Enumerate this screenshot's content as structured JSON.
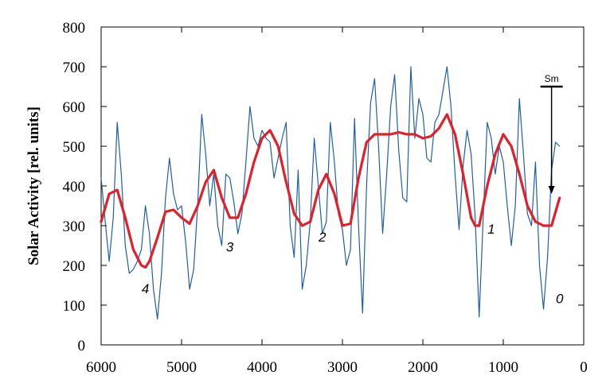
{
  "chart_data": {
    "type": "line",
    "title": "",
    "xlabel": "",
    "ylabel": "Solar Activity [rel. units]",
    "xlim": [
      6000,
      0
    ],
    "ylim": [
      0,
      800
    ],
    "x_ticks": [
      6000,
      5000,
      4000,
      3000,
      2000,
      1000,
      0
    ],
    "y_ticks": [
      0,
      100,
      200,
      300,
      400,
      500,
      600,
      700,
      800
    ],
    "grid": false,
    "legend": "none",
    "series": [
      {
        "color": "#1f5fa8",
        "x": [
          6000,
          5950,
          5900,
          5850,
          5800,
          5750,
          5700,
          5650,
          5600,
          5550,
          5500,
          5450,
          5400,
          5350,
          5300,
          5250,
          5200,
          5150,
          5100,
          5050,
          5000,
          4950,
          4900,
          4850,
          4800,
          4750,
          4700,
          4650,
          4600,
          4550,
          4500,
          4450,
          4400,
          4350,
          4300,
          4250,
          4200,
          4150,
          4100,
          4050,
          4000,
          3950,
          3900,
          3850,
          3800,
          3750,
          3700,
          3650,
          3600,
          3550,
          3500,
          3450,
          3400,
          3350,
          3300,
          3250,
          3200,
          3150,
          3100,
          3050,
          3000,
          2950,
          2900,
          2850,
          2800,
          2750,
          2700,
          2650,
          2600,
          2550,
          2500,
          2450,
          2400,
          2350,
          2300,
          2250,
          2200,
          2150,
          2100,
          2050,
          2000,
          1950,
          1900,
          1850,
          1800,
          1750,
          1700,
          1650,
          1600,
          1550,
          1500,
          1450,
          1400,
          1350,
          1300,
          1250,
          1200,
          1150,
          1100,
          1050,
          1000,
          950,
          900,
          850,
          800,
          750,
          700,
          650,
          600,
          550,
          500,
          450,
          400,
          350,
          300
        ],
        "values": [
          420,
          310,
          210,
          320,
          560,
          430,
          250,
          180,
          190,
          210,
          240,
          350,
          280,
          140,
          65,
          180,
          370,
          470,
          380,
          340,
          350,
          260,
          140,
          190,
          350,
          580,
          480,
          350,
          430,
          300,
          250,
          430,
          420,
          360,
          280,
          330,
          460,
          600,
          520,
          500,
          540,
          520,
          510,
          420,
          470,
          520,
          560,
          300,
          220,
          440,
          140,
          200,
          310,
          520,
          400,
          280,
          310,
          560,
          460,
          330,
          290,
          200,
          240,
          570,
          300,
          80,
          400,
          610,
          670,
          500,
          280,
          430,
          600,
          680,
          490,
          370,
          360,
          700,
          520,
          620,
          580,
          470,
          460,
          560,
          580,
          640,
          700,
          600,
          430,
          290,
          450,
          540,
          480,
          320,
          70,
          320,
          560,
          520,
          430,
          500,
          460,
          350,
          250,
          350,
          620,
          480,
          330,
          300,
          460,
          200,
          90,
          220,
          440,
          510,
          500
        ]
      },
      {
        "color": "#e0202a",
        "x": [
          6000,
          5900,
          5800,
          5700,
          5600,
          5500,
          5450,
          5400,
          5300,
          5200,
          5100,
          5000,
          4900,
          4800,
          4700,
          4600,
          4500,
          4400,
          4300,
          4200,
          4100,
          4000,
          3900,
          3800,
          3700,
          3600,
          3500,
          3400,
          3300,
          3200,
          3100,
          3000,
          2900,
          2800,
          2700,
          2600,
          2500,
          2400,
          2300,
          2200,
          2100,
          2000,
          1900,
          1800,
          1700,
          1600,
          1500,
          1400,
          1350,
          1300,
          1200,
          1100,
          1000,
          900,
          800,
          700,
          600,
          500,
          400,
          300
        ],
        "values": [
          310,
          380,
          390,
          320,
          240,
          200,
          195,
          210,
          270,
          335,
          340,
          320,
          305,
          350,
          410,
          440,
          370,
          320,
          320,
          380,
          460,
          520,
          540,
          500,
          410,
          330,
          300,
          310,
          390,
          430,
          380,
          300,
          305,
          420,
          510,
          530,
          530,
          530,
          535,
          530,
          530,
          520,
          525,
          545,
          580,
          530,
          430,
          320,
          300,
          300,
          400,
          480,
          530,
          500,
          430,
          350,
          310,
          300,
          300,
          370
        ]
      }
    ],
    "annotations": [
      {
        "text": "4",
        "x": 5450,
        "y": 130
      },
      {
        "text": "3",
        "x": 4400,
        "y": 235
      },
      {
        "text": "2",
        "x": 3250,
        "y": 260
      },
      {
        "text": "1",
        "x": 1150,
        "y": 280
      },
      {
        "text": "0",
        "x": 300,
        "y": 105
      }
    ],
    "marker": {
      "label": "Sm",
      "x": 400,
      "y_top": 650,
      "y_bottom": 380
    }
  }
}
